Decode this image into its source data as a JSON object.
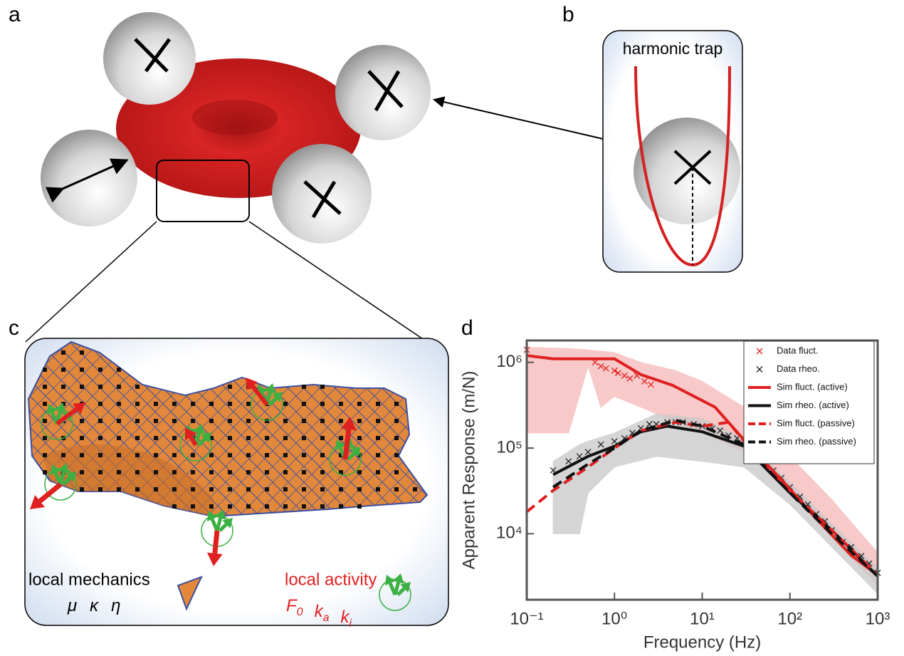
{
  "panels": {
    "a": "a",
    "b": "b",
    "c": "c",
    "d": "d"
  },
  "panel_b": {
    "title": "harmonic trap"
  },
  "panel_c": {
    "mechanics_label": "local mechanics",
    "mechanics_symbols": [
      "μ",
      "κ",
      "η"
    ],
    "activity_label": "local activity",
    "activity_symbols": [
      {
        "base": "F",
        "sub": "0"
      },
      {
        "base": "k",
        "sub": "a"
      },
      {
        "base": "k",
        "sub": "i"
      }
    ]
  },
  "chart_data": {
    "type": "line",
    "log_x": true,
    "log_y": true,
    "xlabel": "Frequency (Hz)",
    "ylabel": "Apparent Response (m/N)",
    "xlim": [
      0.1,
      1000
    ],
    "ylim": [
      1700,
      1800000
    ],
    "xticks": [
      {
        "value": 0.1,
        "label": "10⁻¹"
      },
      {
        "value": 1,
        "label": "10⁰"
      },
      {
        "value": 10,
        "label": "10¹"
      },
      {
        "value": 100,
        "label": "10²"
      },
      {
        "value": 1000,
        "label": "10³"
      }
    ],
    "yticks": [
      {
        "value": 10000,
        "label": "10⁴"
      },
      {
        "value": 100000,
        "label": "10⁵"
      },
      {
        "value": 1000000,
        "label": "10⁶"
      }
    ],
    "legend": "top-right",
    "bands": [
      {
        "color": "#f6b8b8",
        "x": [
          0.1,
          0.3,
          0.5,
          0.7,
          1,
          2,
          5,
          10,
          30,
          100,
          300,
          1000
        ],
        "upper": [
          1500000,
          1450000,
          1400000,
          1350000,
          1300000,
          1000000,
          800000,
          600000,
          300000,
          80000,
          25000,
          6000
        ],
        "lower": [
          150000,
          150000,
          900000,
          300000,
          400000,
          300000,
          200000,
          150000,
          90000,
          30000,
          9000,
          2500
        ]
      },
      {
        "color": "#c8c8c8",
        "x": [
          0.2,
          0.4,
          0.5,
          1,
          3,
          10,
          30,
          100,
          300,
          1000
        ],
        "upper": [
          70000,
          110000,
          120000,
          150000,
          250000,
          220000,
          130000,
          40000,
          13000,
          4000
        ],
        "lower": [
          10000,
          10000,
          30000,
          60000,
          80000,
          70000,
          60000,
          22000,
          7000,
          2000
        ]
      }
    ],
    "series": [
      {
        "name": "Data fluct.",
        "color": "#e02020",
        "style": "marker",
        "x": [
          0.1,
          0.6,
          0.7,
          0.8,
          1,
          1.1,
          1.3,
          1.5,
          1.8,
          2.2,
          2.6
        ],
        "values": [
          1400000,
          1000000,
          900000,
          850000,
          800000,
          750000,
          700000,
          650000,
          700000,
          600000,
          550000
        ]
      },
      {
        "name": "Data rheo.",
        "color": "#222222",
        "style": "marker",
        "x": [
          0.2,
          0.3,
          0.4,
          0.5,
          0.7,
          1,
          1.3,
          1.6,
          2,
          2.5,
          3,
          4,
          5,
          6,
          8,
          10,
          13,
          16,
          20,
          25,
          30,
          40,
          50,
          65,
          80,
          100,
          130,
          160,
          200,
          250,
          300,
          400,
          500,
          650,
          800,
          1000
        ],
        "values": [
          55000,
          70000,
          80000,
          90000,
          110000,
          120000,
          130000,
          150000,
          170000,
          190000,
          190000,
          200000,
          200000,
          200000,
          190000,
          180000,
          170000,
          160000,
          140000,
          130000,
          120000,
          90000,
          70000,
          55000,
          45000,
          35000,
          27000,
          22000,
          17000,
          14000,
          11000,
          8000,
          7000,
          5500,
          4500,
          3500
        ]
      },
      {
        "name": "Sim fluct. (active)",
        "color": "#e02020",
        "style": "solid",
        "x": [
          0.1,
          0.2,
          0.5,
          1,
          2,
          4.6,
          14,
          31,
          85,
          200,
          500,
          1000
        ],
        "values": [
          1200000,
          1100000,
          1100000,
          1100000,
          720000,
          540000,
          300000,
          120000,
          40000,
          15000,
          5600,
          3300
        ]
      },
      {
        "name": "Sim rheo. (active)",
        "color": "#111111",
        "style": "solid",
        "x": [
          0.2,
          0.5,
          1,
          2,
          4,
          10,
          30,
          100,
          300,
          1000
        ],
        "values": [
          49000,
          80000,
          105000,
          155000,
          180000,
          155000,
          105000,
          30000,
          11000,
          3200
        ]
      },
      {
        "name": "Sim fluct. (passive)",
        "color": "#e02020",
        "style": "dashed",
        "x": [
          0.1,
          0.2,
          0.5,
          1,
          2,
          5,
          10,
          20,
          30,
          100,
          300,
          1000
        ],
        "values": [
          18000,
          32000,
          60000,
          100000,
          160000,
          200000,
          180000,
          200000,
          120000,
          32000,
          11000,
          3300
        ]
      },
      {
        "name": "Sim rheo. (passive)",
        "color": "#111111",
        "style": "dashed",
        "x": [
          0.2,
          0.5,
          1,
          2,
          5,
          10,
          30,
          100,
          300,
          1000
        ],
        "values": [
          35000,
          65000,
          100000,
          160000,
          210000,
          180000,
          110000,
          30000,
          10000,
          3200
        ]
      }
    ]
  }
}
